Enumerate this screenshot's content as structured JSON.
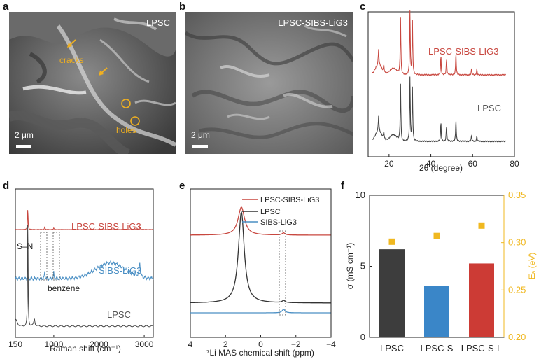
{
  "panels": {
    "a": {
      "letter": "a",
      "label": "LPSC",
      "scalebar": "2 μm",
      "annotations": [
        "cracks",
        "holes"
      ],
      "colors": {
        "annotation": "#f0b020"
      }
    },
    "b": {
      "letter": "b",
      "label": "LPSC-SIBS-LiG3",
      "scalebar": "2 μm"
    },
    "c": {
      "letter": "c",
      "xlabel": "2θ (degree)",
      "series_labels": [
        "LPSC-SIBS-LiG3",
        "LPSC"
      ]
    },
    "d": {
      "letter": "d",
      "xlabel": "Raman shift (cm⁻¹)",
      "annotations": [
        "S–N",
        "benzene"
      ],
      "series_labels": [
        "LPSC-SIBS-LiG3",
        "SIBS-LiG3",
        "LPSC"
      ]
    },
    "e": {
      "letter": "e",
      "xlabel": "⁷Li MAS chemical shift (ppm)",
      "legend": [
        "LPSC-SIBS-LiG3",
        "LPSC",
        "SIBS-LiG3"
      ]
    },
    "f": {
      "letter": "f",
      "ylabel_left": "σ (mS cm⁻¹)",
      "ylabel_right": "Eₐ (eV)"
    }
  },
  "chart_data": [
    {
      "panel": "c",
      "type": "line",
      "xlabel": "2θ (degree)",
      "x_ticks": [
        20,
        40,
        60,
        80
      ],
      "xlim": [
        10,
        80
      ],
      "y_ticks_shown": false,
      "series": [
        {
          "name": "LPSC-SIBS-LIG3",
          "color": "#c8473f",
          "peaks": [
            15,
            17.5,
            25.5,
            30,
            31.2,
            44.8,
            47.5,
            52,
            59.5,
            62
          ]
        },
        {
          "name": "LPSC",
          "color": "#444444",
          "peaks": [
            15,
            17.5,
            25.5,
            30,
            31.2,
            44.8,
            47.5,
            52,
            59.5,
            62
          ]
        }
      ]
    },
    {
      "panel": "d",
      "type": "line",
      "xlabel": "Raman shift (cm⁻¹)",
      "x_ticks": [
        150,
        1000,
        2000,
        3000
      ],
      "xlim": [
        150,
        3200
      ],
      "y_ticks_shown": false,
      "series": [
        {
          "name": "LPSC-SIBS-LiG3",
          "color": "#c8473f"
        },
        {
          "name": "SIBS-LiG3",
          "color": "#4a8fc4"
        },
        {
          "name": "LPSC",
          "color": "#444444"
        }
      ]
    },
    {
      "panel": "e",
      "type": "line",
      "xlabel": "⁷Li MAS chemical shift (ppm)",
      "x_ticks": [
        4,
        2,
        0,
        -2,
        -4
      ],
      "xlim": [
        4,
        -4
      ],
      "y_ticks_shown": false,
      "series": [
        {
          "name": "LPSC-SIBS-LiG3",
          "color": "#c8473f",
          "peak_ppm": 1.1
        },
        {
          "name": "LPSC",
          "color": "#333333",
          "peak_ppm": 1.1
        },
        {
          "name": "SIBS-LiG3",
          "color": "#4a8fc4",
          "peak_ppm": -1.3
        }
      ]
    },
    {
      "panel": "f",
      "type": "bar",
      "categories": [
        "LPSC",
        "LPSC-S",
        "LPSC-S-L"
      ],
      "values": [
        6.2,
        3.6,
        5.2
      ],
      "ylabel": "σ (mS cm⁻¹)",
      "ylim": [
        0,
        10
      ],
      "y_ticks": [
        0,
        5,
        10
      ],
      "bar_colors": [
        "#3d3d3d",
        "#3a86c8",
        "#cc3b35"
      ],
      "secondary": {
        "type": "scatter",
        "ylabel": "Eₐ (eV)",
        "ylim": [
          0.2,
          0.35
        ],
        "y_ticks": [
          "0.20",
          "0.25",
          "0.30",
          "0.35"
        ],
        "values": [
          0.301,
          0.307,
          0.318
        ],
        "color": "#f0b820"
      }
    }
  ]
}
